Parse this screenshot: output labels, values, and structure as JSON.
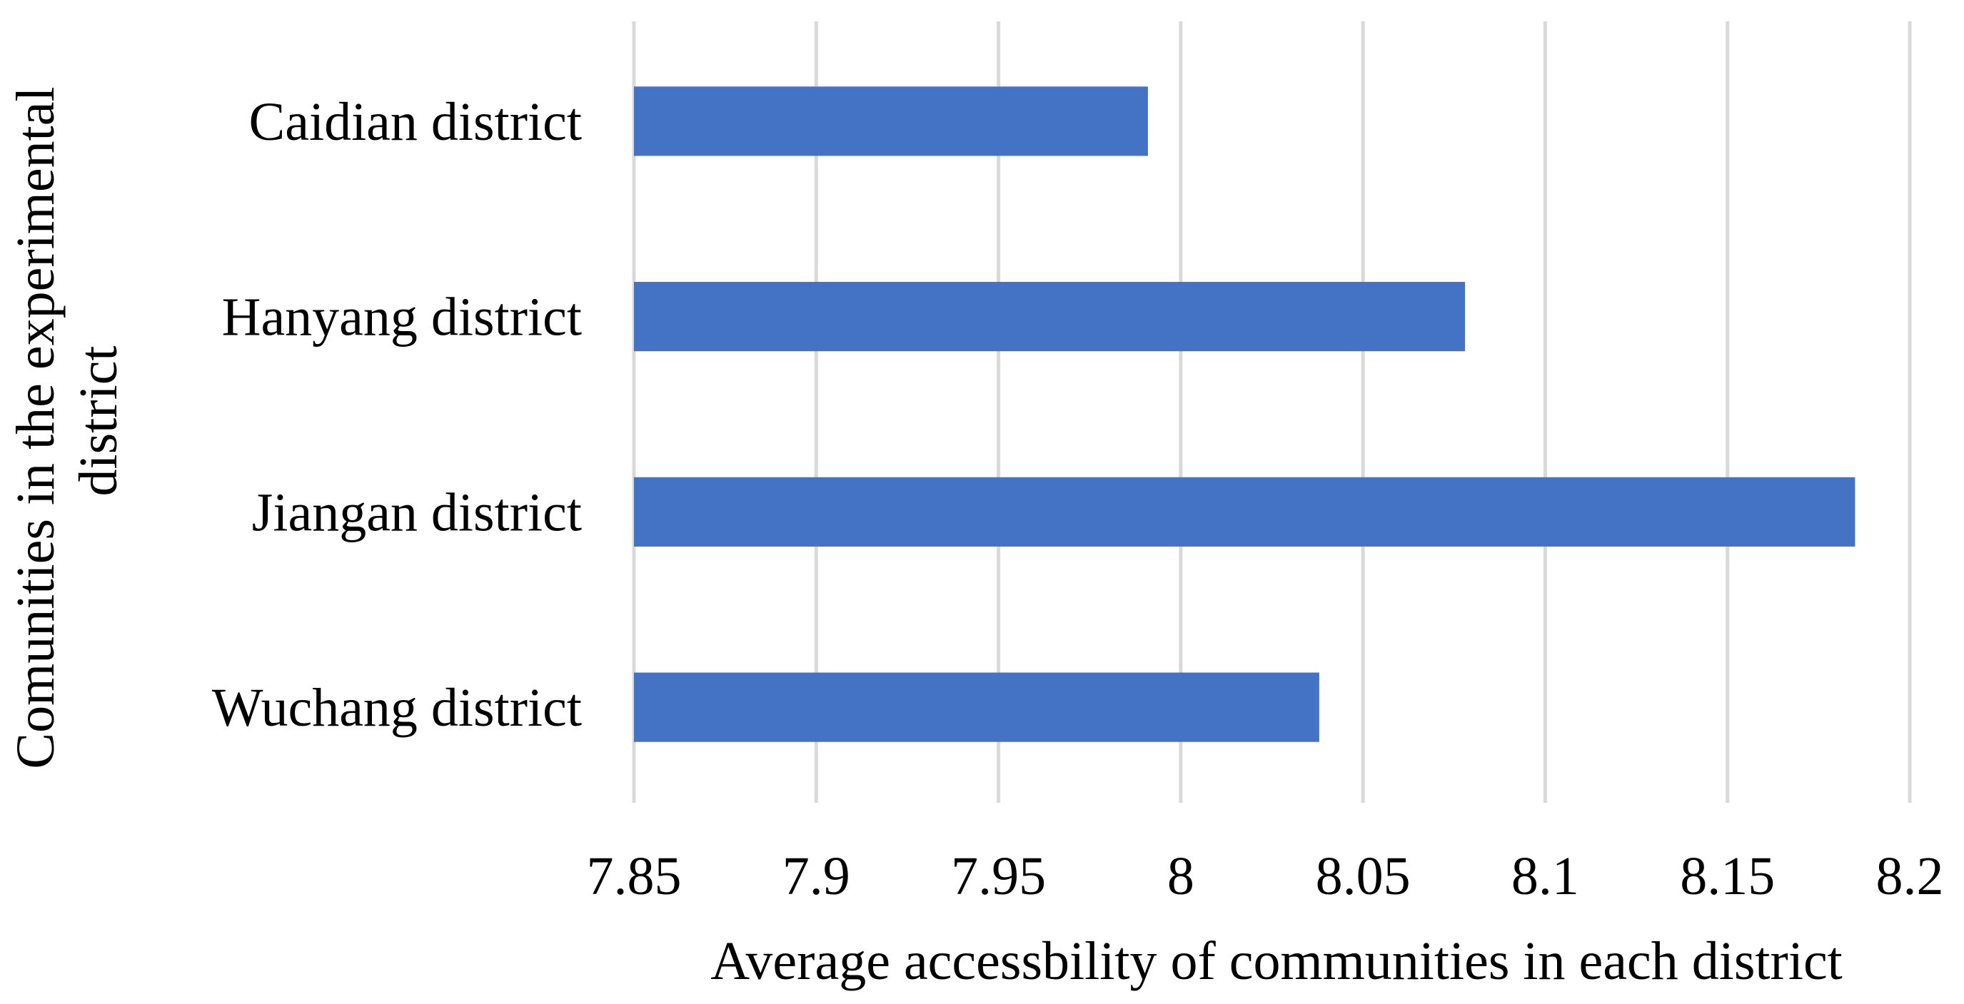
{
  "chart_data": {
    "type": "bar",
    "orientation": "horizontal",
    "title": "",
    "categories": [
      "Caidian district",
      "Hanyang district",
      "Jiangan district",
      "Wuchang district"
    ],
    "series": [
      {
        "name": "Average accessbility",
        "values": [
          7.991,
          8.078,
          8.185,
          8.038
        ]
      }
    ],
    "xlabel": "Average accessbility of communities in each district",
    "ylabel": "Comunities in the experimental district",
    "ylabel_lines": [
      "Comunities in the experimental",
      "district"
    ],
    "xlim": [
      7.85,
      8.2
    ],
    "xticks": [
      "7.85",
      "7.9",
      "7.95",
      "8",
      "8.05",
      "8.1",
      "8.15",
      "8.2"
    ],
    "xtick_values": [
      7.85,
      7.9,
      7.95,
      8.0,
      8.05,
      8.1,
      8.15,
      8.2
    ],
    "grid": "vertical",
    "legend": "none",
    "bar_color": "#4472c4",
    "gridline_color": "#d9d9d9"
  }
}
